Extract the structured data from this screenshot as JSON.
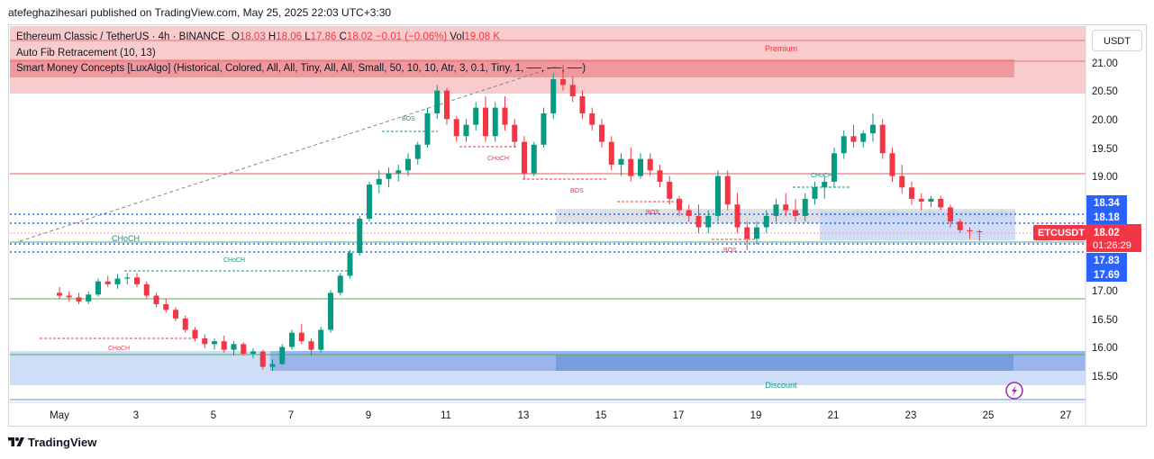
{
  "header": {
    "publisher": "atefeghazihesari published on TradingView.com, May 25, 2025 22:03 UTC+3:30"
  },
  "legend": {
    "symbol": "Ethereum Classic / TetherUS · 4h · BINANCE",
    "o_label": "O",
    "o": "18.03",
    "h_label": "H",
    "h": "18.06",
    "l_label": "L",
    "l": "17.86",
    "c_label": "C",
    "c": "18.02",
    "change": "−0.01 (−0.06%)",
    "vol_label": "Vol",
    "vol": "19.08 K",
    "indicator1": "Auto Fib Retracement (10, 13)",
    "indicator2": "Smart Money Concepts [LuxAlgo] (Historical, Colored, All, All, Tiny, All, All, Small, 50, 10, 10, Atr, 3, 0.1, Tiny, 1, ──, ──, ──)"
  },
  "currency_button": "USDT",
  "price_axis": {
    "ticks": [
      "21.00",
      "20.50",
      "20.00",
      "19.50",
      "19.00",
      "17.00",
      "16.50",
      "16.00",
      "15.50"
    ],
    "tag_1834": "18.34",
    "tag_1818": "18.18",
    "tag_1783": "17.83",
    "tag_1769": "17.69",
    "symbol_tag": "ETCUSDT",
    "last_price": "18.02",
    "countdown": "01:26:29",
    "colors": {
      "last": "#f23645",
      "tag": "#2962ff"
    }
  },
  "time_axis": {
    "ticks": [
      "May",
      "3",
      "5",
      "7",
      "9",
      "11",
      "13",
      "15",
      "17",
      "19",
      "21",
      "23",
      "25",
      "27"
    ]
  },
  "zones": {
    "premium": "Premium",
    "discount": "Discount"
  },
  "smc_labels": {
    "choch_big": "CHoCH",
    "choch_1": "CHoCH",
    "choch_2": "CHoCH",
    "choch_3": "CHoCH",
    "choch_4": "CHoCH",
    "bos_1": "BOS",
    "bos_2": "BOS",
    "bos_3": "BOS",
    "bos_4": "BOS"
  },
  "footer": {
    "brand": "TradingView"
  },
  "chart_data": {
    "type": "candlestick",
    "title": "Ethereum Classic / TetherUS · 4h · BINANCE",
    "ylim": [
      15.1,
      21.5
    ],
    "x": [
      "May",
      "3",
      "5",
      "7",
      "9",
      "11",
      "13",
      "15",
      "17",
      "19",
      "21",
      "23",
      "25",
      "27"
    ],
    "candles": [
      [
        1,
        16.95,
        17.05,
        16.85,
        16.9
      ],
      [
        1.25,
        16.9,
        16.98,
        16.8,
        16.87
      ],
      [
        1.5,
        16.87,
        16.95,
        16.75,
        16.8
      ],
      [
        1.75,
        16.8,
        16.97,
        16.75,
        16.92
      ],
      [
        2,
        16.92,
        17.2,
        16.88,
        17.15
      ],
      [
        2.25,
        17.15,
        17.25,
        17.05,
        17.1
      ],
      [
        2.5,
        17.1,
        17.28,
        17.02,
        17.2
      ],
      [
        2.75,
        17.2,
        17.3,
        17.1,
        17.22
      ],
      [
        3,
        17.22,
        17.3,
        17.05,
        17.1
      ],
      [
        3.25,
        17.1,
        17.15,
        16.85,
        16.9
      ],
      [
        3.5,
        16.9,
        16.95,
        16.7,
        16.75
      ],
      [
        3.75,
        16.75,
        16.85,
        16.6,
        16.65
      ],
      [
        4,
        16.65,
        16.7,
        16.45,
        16.5
      ],
      [
        4.25,
        16.5,
        16.55,
        16.25,
        16.3
      ],
      [
        4.5,
        16.3,
        16.35,
        16.1,
        16.15
      ],
      [
        4.75,
        16.15,
        16.22,
        15.98,
        16.05
      ],
      [
        5,
        16.05,
        16.15,
        15.95,
        16.1
      ],
      [
        5.25,
        16.1,
        16.2,
        15.9,
        15.95
      ],
      [
        5.5,
        15.95,
        16.1,
        15.85,
        16.05
      ],
      [
        5.75,
        16.05,
        16.08,
        15.85,
        15.88
      ],
      [
        6,
        15.88,
        15.98,
        15.8,
        15.92
      ],
      [
        6.25,
        15.92,
        15.95,
        15.6,
        15.65
      ],
      [
        6.5,
        15.65,
        15.78,
        15.58,
        15.7
      ],
      [
        6.75,
        15.7,
        16.05,
        15.68,
        16.0
      ],
      [
        7,
        16.0,
        16.3,
        15.95,
        16.25
      ],
      [
        7.25,
        16.25,
        16.4,
        16.05,
        16.1
      ],
      [
        7.5,
        16.1,
        16.15,
        15.85,
        15.95
      ],
      [
        7.75,
        15.95,
        16.35,
        15.9,
        16.3
      ],
      [
        8,
        16.3,
        17.0,
        16.25,
        16.95
      ],
      [
        8.25,
        16.95,
        17.3,
        16.9,
        17.25
      ],
      [
        8.5,
        17.25,
        17.7,
        17.2,
        17.65
      ],
      [
        8.75,
        17.65,
        18.3,
        17.6,
        18.25
      ],
      [
        9,
        18.25,
        18.9,
        18.2,
        18.85
      ],
      [
        9.25,
        18.85,
        19.1,
        18.7,
        18.95
      ],
      [
        9.5,
        18.95,
        19.15,
        18.8,
        19.05
      ],
      [
        9.75,
        19.05,
        19.2,
        18.9,
        19.1
      ],
      [
        10,
        19.1,
        19.4,
        19.0,
        19.3
      ],
      [
        10.25,
        19.3,
        19.6,
        19.2,
        19.55
      ],
      [
        10.5,
        19.55,
        20.2,
        19.5,
        20.1
      ],
      [
        10.75,
        20.1,
        20.6,
        20.0,
        20.5
      ],
      [
        11,
        20.5,
        20.55,
        19.9,
        20.0
      ],
      [
        11.25,
        20.0,
        20.05,
        19.6,
        19.7
      ],
      [
        11.5,
        19.7,
        20.0,
        19.6,
        19.9
      ],
      [
        11.75,
        19.9,
        20.3,
        19.8,
        20.2
      ],
      [
        12,
        20.2,
        20.4,
        19.6,
        19.7
      ],
      [
        12.25,
        19.7,
        20.3,
        19.6,
        20.2
      ],
      [
        12.5,
        20.2,
        20.4,
        19.8,
        19.9
      ],
      [
        12.75,
        19.9,
        20.0,
        19.5,
        19.6
      ],
      [
        13,
        19.6,
        19.7,
        18.95,
        19.05
      ],
      [
        13.25,
        19.05,
        19.6,
        19.0,
        19.55
      ],
      [
        13.5,
        19.55,
        20.2,
        19.5,
        20.1
      ],
      [
        13.75,
        20.1,
        20.8,
        20.0,
        20.7
      ],
      [
        14,
        20.7,
        20.95,
        20.5,
        20.6
      ],
      [
        14.25,
        20.6,
        20.75,
        20.3,
        20.4
      ],
      [
        14.5,
        20.4,
        20.5,
        20.0,
        20.1
      ],
      [
        14.75,
        20.1,
        20.2,
        19.8,
        19.9
      ],
      [
        15,
        19.9,
        20.0,
        19.5,
        19.6
      ],
      [
        15.25,
        19.6,
        19.7,
        19.1,
        19.2
      ],
      [
        15.5,
        19.2,
        19.4,
        19.0,
        19.3
      ],
      [
        15.75,
        19.3,
        19.5,
        18.9,
        19.0
      ],
      [
        16,
        19.0,
        19.4,
        18.95,
        19.3
      ],
      [
        16.25,
        19.3,
        19.4,
        19.0,
        19.1
      ],
      [
        16.5,
        19.1,
        19.2,
        18.8,
        18.9
      ],
      [
        16.75,
        18.9,
        19.0,
        18.5,
        18.6
      ],
      [
        17,
        18.6,
        18.65,
        18.3,
        18.4
      ],
      [
        17.25,
        18.4,
        18.5,
        18.2,
        18.3
      ],
      [
        17.5,
        18.3,
        18.5,
        18.0,
        18.1
      ],
      [
        17.75,
        18.1,
        18.4,
        18.0,
        18.3
      ],
      [
        18,
        18.3,
        19.1,
        18.2,
        19.0
      ],
      [
        18.25,
        19.0,
        19.1,
        18.4,
        18.5
      ],
      [
        18.5,
        18.5,
        18.7,
        18.0,
        18.1
      ],
      [
        18.75,
        18.1,
        18.2,
        17.7,
        17.9
      ],
      [
        19,
        17.9,
        18.2,
        17.8,
        18.1
      ],
      [
        19.25,
        18.1,
        18.4,
        18.0,
        18.3
      ],
      [
        19.5,
        18.3,
        18.6,
        18.2,
        18.5
      ],
      [
        19.75,
        18.5,
        18.7,
        18.3,
        18.4
      ],
      [
        20,
        18.4,
        18.6,
        18.2,
        18.3
      ],
      [
        20.25,
        18.3,
        18.7,
        18.2,
        18.6
      ],
      [
        20.5,
        18.6,
        18.9,
        18.5,
        18.8
      ],
      [
        20.75,
        18.8,
        19.0,
        18.6,
        18.9
      ],
      [
        21,
        18.9,
        19.5,
        18.8,
        19.4
      ],
      [
        21.25,
        19.4,
        19.8,
        19.3,
        19.7
      ],
      [
        21.5,
        19.7,
        19.9,
        19.5,
        19.6
      ],
      [
        21.75,
        19.6,
        19.8,
        19.5,
        19.75
      ],
      [
        22,
        19.75,
        20.1,
        19.6,
        19.9
      ],
      [
        22.25,
        19.9,
        20.0,
        19.3,
        19.4
      ],
      [
        22.5,
        19.4,
        19.5,
        18.9,
        19.0
      ],
      [
        22.75,
        19.0,
        19.2,
        18.7,
        18.8
      ],
      [
        23,
        18.8,
        18.9,
        18.5,
        18.6
      ],
      [
        23.25,
        18.6,
        18.7,
        18.4,
        18.55
      ],
      [
        23.5,
        18.55,
        18.65,
        18.45,
        18.6
      ],
      [
        23.75,
        18.6,
        18.65,
        18.4,
        18.45
      ],
      [
        24,
        18.45,
        18.5,
        18.1,
        18.2
      ],
      [
        24.25,
        18.2,
        18.25,
        18.0,
        18.05
      ],
      [
        24.5,
        18.05,
        18.1,
        17.9,
        18.03
      ],
      [
        24.75,
        18.03,
        18.06,
        17.86,
        18.02
      ]
    ]
  }
}
